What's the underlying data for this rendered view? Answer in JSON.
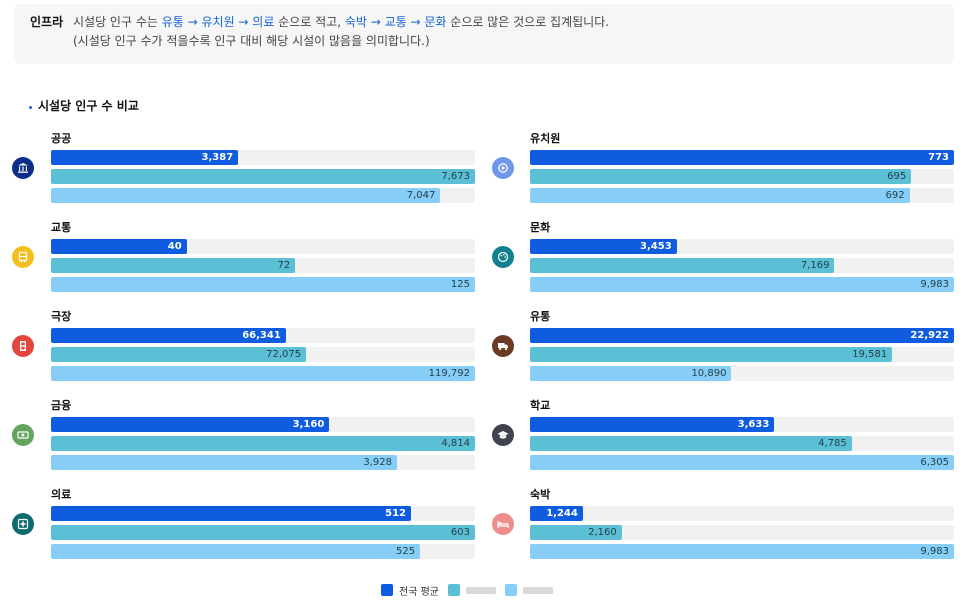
{
  "info": {
    "tag": "인프라",
    "line1_pre": "시설당 인구 수는 ",
    "low_sequence": "유통 → 유치원 → 의료",
    "line1_mid": " 순으로 적고, ",
    "high_sequence": "숙박 → 교통 → 문화",
    "line1_post": " 순으로 많은 것으로 집계됩니다.",
    "line2": "(시설당 인구 수가 적을수록 인구 대비 해당 시설이 많음을 의미합니다.)"
  },
  "section_title": "시설당 인구 수 비교",
  "colors": {
    "series0": "#0f5ce0",
    "series1": "#5bbfd6",
    "series2": "#86cdf7"
  },
  "legend": {
    "series0_label": "전국 평균"
  },
  "chart_data": {
    "type": "bar",
    "orientation": "horizontal",
    "title": "시설당 인구 수 비교",
    "series_names": [
      "전국 평균",
      "",
      ""
    ],
    "note": "series 2 and 3 legend labels are obscured in the image",
    "groups": [
      {
        "name": "공공",
        "icon": "government-building-icon",
        "icon_color": "#0d2f8a",
        "values": [
          3387,
          7673,
          7047
        ]
      },
      {
        "name": "유치원",
        "icon": "kindergarten-icon",
        "icon_color": "#6f97ea",
        "values": [
          773,
          695,
          692
        ]
      },
      {
        "name": "교통",
        "icon": "bus-icon",
        "icon_color": "#f2c01e",
        "values": [
          40,
          72,
          125
        ]
      },
      {
        "name": "문화",
        "icon": "palette-icon",
        "icon_color": "#12818f",
        "values": [
          3453,
          7169,
          9983
        ]
      },
      {
        "name": "극장",
        "icon": "film-icon",
        "icon_color": "#e2453d",
        "values": [
          66341,
          72075,
          119792
        ]
      },
      {
        "name": "유통",
        "icon": "delivery-truck-icon",
        "icon_color": "#6b3a22",
        "values": [
          22922,
          19581,
          10890
        ]
      },
      {
        "name": "금융",
        "icon": "money-icon",
        "icon_color": "#62a55d",
        "values": [
          3160,
          4814,
          3928
        ]
      },
      {
        "name": "학교",
        "icon": "graduation-cap-icon",
        "icon_color": "#404450",
        "values": [
          3633,
          4785,
          6305
        ]
      },
      {
        "name": "의료",
        "icon": "medical-cross-icon",
        "icon_color": "#0e6b70",
        "values": [
          512,
          603,
          525
        ]
      },
      {
        "name": "숙박",
        "icon": "bed-icon",
        "icon_color": "#ef8d8b",
        "values": [
          1244,
          2160,
          9983
        ]
      }
    ]
  }
}
